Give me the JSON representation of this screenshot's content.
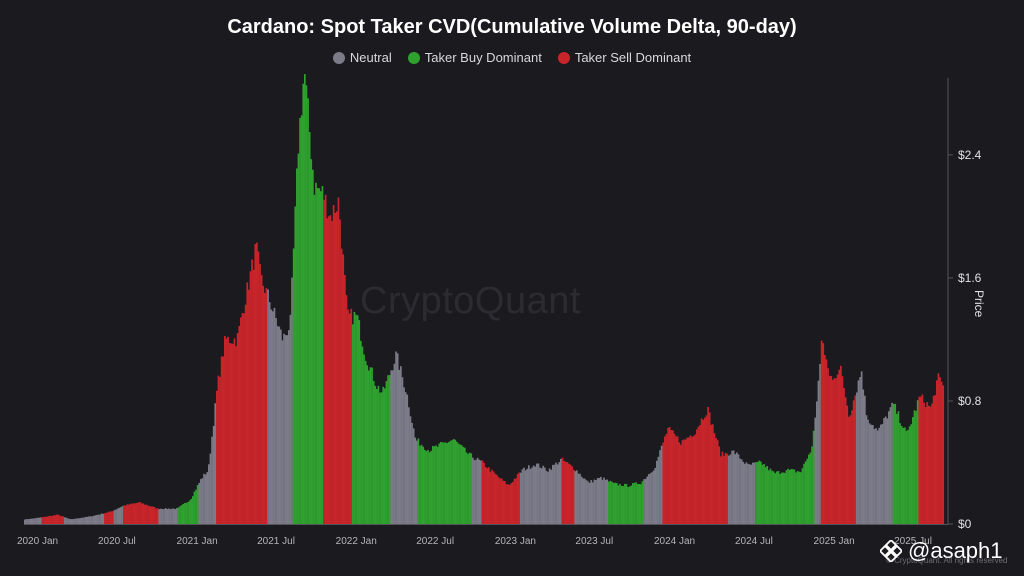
{
  "title": "Cardano: Spot Taker CVD(Cumulative Volume Delta, 90-day)",
  "legend": [
    {
      "label": "Neutral",
      "color": "#7c7b88"
    },
    {
      "label": "Taker Buy Dominant",
      "color": "#2fa12f"
    },
    {
      "label": "Taker Sell Dominant",
      "color": "#c8252b"
    }
  ],
  "watermark": "CryptoQuant",
  "credit": "© CryptoQuant. All rights reserved",
  "handle": "@asaph1",
  "chart_data": {
    "type": "area",
    "title": "Cardano: Spot Taker CVD(Cumulative Volume Delta, 90-day)",
    "ylabel": "Price",
    "ylim": [
      0,
      2.9
    ],
    "y_ticks": [
      "$0",
      "$0.8",
      "$1.6",
      "$2.4"
    ],
    "y_tick_values": [
      0,
      0.8,
      1.6,
      2.4
    ],
    "x_ticks": [
      "2020 Jan",
      "2020 Jul",
      "2021 Jan",
      "2021 Jul",
      "2022 Jan",
      "2022 Jul",
      "2023 Jan",
      "2023 Jul",
      "2024 Jan",
      "2024 Jul",
      "2025 Jan",
      "2025 Jul"
    ],
    "x_tick_dates": [
      "2020-01-01",
      "2020-07-01",
      "2021-01-01",
      "2021-07-01",
      "2022-01-01",
      "2022-07-01",
      "2023-01-01",
      "2023-07-01",
      "2024-01-01",
      "2024-07-01",
      "2025-01-01",
      "2025-07-01"
    ],
    "x_range": [
      "2019-12-01",
      "2025-09-10"
    ],
    "y_axis_position": "right",
    "grid": false,
    "legend_position": "top-center",
    "price_points": [
      [
        "2019-12-01",
        0.03
      ],
      [
        "2020-01-01",
        0.04
      ],
      [
        "2020-02-15",
        0.06
      ],
      [
        "2020-03-15",
        0.03
      ],
      [
        "2020-05-01",
        0.05
      ],
      [
        "2020-06-15",
        0.08
      ],
      [
        "2020-07-15",
        0.12
      ],
      [
        "2020-08-20",
        0.14
      ],
      [
        "2020-10-01",
        0.1
      ],
      [
        "2020-11-15",
        0.1
      ],
      [
        "2020-12-15",
        0.16
      ],
      [
        "2021-01-10",
        0.3
      ],
      [
        "2021-01-25",
        0.35
      ],
      [
        "2021-02-15",
        0.9
      ],
      [
        "2021-03-05",
        1.2
      ],
      [
        "2021-04-01",
        1.2
      ],
      [
        "2021-04-15",
        1.4
      ],
      [
        "2021-05-15",
        1.8
      ],
      [
        "2021-05-25",
        1.6
      ],
      [
        "2021-06-15",
        1.45
      ],
      [
        "2021-07-15",
        1.2
      ],
      [
        "2021-08-01",
        1.3
      ],
      [
        "2021-08-20",
        2.5
      ],
      [
        "2021-09-02",
        2.95
      ],
      [
        "2021-09-25",
        2.2
      ],
      [
        "2021-10-15",
        2.15
      ],
      [
        "2021-11-01",
        2.0
      ],
      [
        "2021-11-20",
        2.1
      ],
      [
        "2021-12-10",
        1.35
      ],
      [
        "2022-01-01",
        1.35
      ],
      [
        "2022-01-20",
        1.1
      ],
      [
        "2022-02-15",
        0.9
      ],
      [
        "2022-03-01",
        0.85
      ],
      [
        "2022-04-01",
        1.1
      ],
      [
        "2022-04-25",
        0.85
      ],
      [
        "2022-05-15",
        0.55
      ],
      [
        "2022-06-15",
        0.48
      ],
      [
        "2022-08-10",
        0.55
      ],
      [
        "2022-09-15",
        0.45
      ],
      [
        "2022-10-15",
        0.4
      ],
      [
        "2022-11-15",
        0.32
      ],
      [
        "2022-12-15",
        0.25
      ],
      [
        "2023-01-15",
        0.35
      ],
      [
        "2023-02-15",
        0.39
      ],
      [
        "2023-03-15",
        0.35
      ],
      [
        "2023-04-15",
        0.42
      ],
      [
        "2023-05-15",
        0.36
      ],
      [
        "2023-06-15",
        0.27
      ],
      [
        "2023-07-15",
        0.3
      ],
      [
        "2023-08-15",
        0.26
      ],
      [
        "2023-09-15",
        0.25
      ],
      [
        "2023-10-15",
        0.27
      ],
      [
        "2023-11-15",
        0.37
      ],
      [
        "2023-12-15",
        0.62
      ],
      [
        "2024-01-15",
        0.53
      ],
      [
        "2024-02-15",
        0.6
      ],
      [
        "2024-03-15",
        0.75
      ],
      [
        "2024-04-15",
        0.45
      ],
      [
        "2024-05-15",
        0.47
      ],
      [
        "2024-06-15",
        0.38
      ],
      [
        "2024-07-15",
        0.4
      ],
      [
        "2024-08-15",
        0.33
      ],
      [
        "2024-09-15",
        0.35
      ],
      [
        "2024-10-15",
        0.34
      ],
      [
        "2024-11-10",
        0.5
      ],
      [
        "2024-11-25",
        0.95
      ],
      [
        "2024-12-03",
        1.2
      ],
      [
        "2024-12-20",
        0.95
      ],
      [
        "2025-01-15",
        1.0
      ],
      [
        "2025-02-03",
        0.7
      ],
      [
        "2025-03-03",
        1.0
      ],
      [
        "2025-03-15",
        0.7
      ],
      [
        "2025-04-10",
        0.6
      ],
      [
        "2025-05-15",
        0.78
      ],
      [
        "2025-06-15",
        0.58
      ],
      [
        "2025-07-15",
        0.83
      ],
      [
        "2025-08-10",
        0.75
      ],
      [
        "2025-08-25",
        0.95
      ],
      [
        "2025-09-10",
        0.88
      ]
    ],
    "regimes": [
      {
        "start": "2019-12-01",
        "end": "2020-01-10",
        "state": "Neutral"
      },
      {
        "start": "2020-01-10",
        "end": "2020-03-01",
        "state": "Taker Sell Dominant"
      },
      {
        "start": "2020-03-01",
        "end": "2020-06-01",
        "state": "Neutral"
      },
      {
        "start": "2020-06-01",
        "end": "2020-06-20",
        "state": "Taker Sell Dominant"
      },
      {
        "start": "2020-06-20",
        "end": "2020-07-15",
        "state": "Neutral"
      },
      {
        "start": "2020-07-15",
        "end": "2020-10-01",
        "state": "Taker Sell Dominant"
      },
      {
        "start": "2020-10-01",
        "end": "2020-11-15",
        "state": "Neutral"
      },
      {
        "start": "2020-11-15",
        "end": "2021-01-01",
        "state": "Taker Buy Dominant"
      },
      {
        "start": "2021-01-01",
        "end": "2021-02-10",
        "state": "Neutral"
      },
      {
        "start": "2021-02-10",
        "end": "2021-06-10",
        "state": "Taker Sell Dominant"
      },
      {
        "start": "2021-06-10",
        "end": "2021-08-05",
        "state": "Neutral"
      },
      {
        "start": "2021-08-05",
        "end": "2021-10-15",
        "state": "Taker Buy Dominant"
      },
      {
        "start": "2021-10-15",
        "end": "2021-12-20",
        "state": "Taker Sell Dominant"
      },
      {
        "start": "2021-12-20",
        "end": "2022-03-20",
        "state": "Taker Buy Dominant"
      },
      {
        "start": "2022-03-20",
        "end": "2022-05-20",
        "state": "Neutral"
      },
      {
        "start": "2022-05-20",
        "end": "2022-09-20",
        "state": "Taker Buy Dominant"
      },
      {
        "start": "2022-09-20",
        "end": "2022-10-15",
        "state": "Neutral"
      },
      {
        "start": "2022-10-15",
        "end": "2023-01-10",
        "state": "Taker Sell Dominant"
      },
      {
        "start": "2023-01-10",
        "end": "2023-04-15",
        "state": "Neutral"
      },
      {
        "start": "2023-04-15",
        "end": "2023-05-15",
        "state": "Taker Sell Dominant"
      },
      {
        "start": "2023-05-15",
        "end": "2023-08-01",
        "state": "Neutral"
      },
      {
        "start": "2023-08-01",
        "end": "2023-10-20",
        "state": "Taker Buy Dominant"
      },
      {
        "start": "2023-10-20",
        "end": "2023-12-01",
        "state": "Neutral"
      },
      {
        "start": "2023-12-01",
        "end": "2024-05-01",
        "state": "Taker Sell Dominant"
      },
      {
        "start": "2024-05-01",
        "end": "2024-07-01",
        "state": "Neutral"
      },
      {
        "start": "2024-07-01",
        "end": "2024-11-15",
        "state": "Taker Buy Dominant"
      },
      {
        "start": "2024-11-15",
        "end": "2024-12-01",
        "state": "Neutral"
      },
      {
        "start": "2024-12-01",
        "end": "2025-02-20",
        "state": "Taker Sell Dominant"
      },
      {
        "start": "2025-02-20",
        "end": "2025-05-15",
        "state": "Neutral"
      },
      {
        "start": "2025-05-15",
        "end": "2025-07-10",
        "state": "Taker Buy Dominant"
      },
      {
        "start": "2025-07-10",
        "end": "2025-09-10",
        "state": "Taker Sell Dominant"
      }
    ]
  }
}
